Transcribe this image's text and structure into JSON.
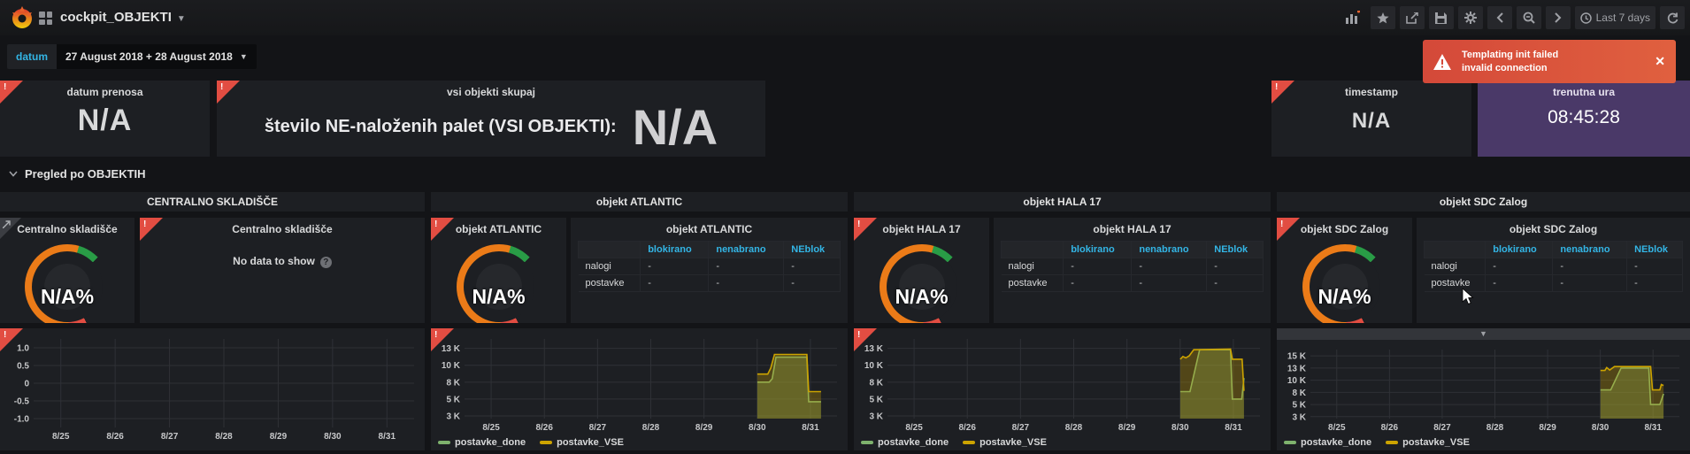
{
  "navbar": {
    "dashboard_title": "cockpit_OBJEKTI",
    "time_range_label": "Last 7 days"
  },
  "submenu": {
    "variable_label": "datum",
    "variable_value": "27 August 2018 + 28 August 2018"
  },
  "toast": {
    "title": "Templating init failed",
    "message": "invalid connection",
    "close_label": "✕"
  },
  "top_panels": {
    "datum_prenosa": {
      "title": "datum prenosa",
      "value": "N/A"
    },
    "vsi_objekti": {
      "title": "vsi objekti skupaj",
      "label": "število NE-naloženih palet (VSI OBJEKTI):",
      "value": "N/A"
    },
    "timestamp": {
      "title": "timestamp",
      "value": "N/A"
    },
    "trenutna_ura": {
      "title": "trenutna ura",
      "value": "08:45:28",
      "bg_color": "#4a3968"
    }
  },
  "row_header": {
    "title": "Pregled po OBJEKTIH"
  },
  "gauge_colors": {
    "start": "#e24d42",
    "main": "#eb7b18",
    "end": "#299c46"
  },
  "columns": [
    {
      "header": "CENTRALNO SKLADIŠČE",
      "gauge": {
        "title": "Centralno skladišče",
        "value": "N/A%"
      },
      "detail": {
        "type": "nodata",
        "title": "Centralno skladišče",
        "message": "No data to show",
        "help_icon": "?"
      }
    },
    {
      "header": "objekt ATLANTIC",
      "gauge": {
        "title": "objekt ATLANTIC",
        "value": "N/A%"
      },
      "detail": {
        "type": "table",
        "title": "objekt ATLANTIC",
        "col_headers": [
          "blokirano",
          "nenabrano",
          "NEblok"
        ],
        "rows": [
          {
            "label": "nalogi",
            "values": [
              "-",
              "-",
              "-"
            ]
          },
          {
            "label": "postavke",
            "values": [
              "-",
              "-",
              "-"
            ]
          }
        ]
      }
    },
    {
      "header": "objekt HALA 17",
      "gauge": {
        "title": "objekt HALA 17",
        "value": "N/A%"
      },
      "detail": {
        "type": "table",
        "title": "objekt HALA 17",
        "col_headers": [
          "blokirano",
          "nenabrano",
          "NEblok"
        ],
        "rows": [
          {
            "label": "nalogi",
            "values": [
              "-",
              "-",
              "-"
            ]
          },
          {
            "label": "postavke",
            "values": [
              "-",
              "-",
              "-"
            ]
          }
        ]
      }
    },
    {
      "header": "objekt SDC Zalog",
      "gauge": {
        "title": "objekt SDC Zalog",
        "value": "N/A%"
      },
      "detail": {
        "type": "table",
        "title": "objekt SDC Zalog",
        "col_headers": [
          "blokirano",
          "nenabrano",
          "NEblok"
        ],
        "rows": [
          {
            "label": "nalogi",
            "values": [
              "-",
              "-",
              "-"
            ]
          },
          {
            "label": "postavke",
            "values": [
              "-",
              "-",
              "-"
            ]
          }
        ]
      }
    }
  ],
  "chart_data": [
    {
      "panel": "Centralno skladišče graph",
      "type": "line",
      "x_ticks": [
        "8/25",
        "8/26",
        "8/27",
        "8/28",
        "8/29",
        "8/30",
        "8/31"
      ],
      "y_tick_labels": [
        "1.0",
        "0.5",
        "0",
        "-0.5",
        "-1.0"
      ],
      "y_tick_values": [
        1,
        0.5,
        0,
        -0.5,
        -1
      ],
      "ylim": [
        -1.25,
        1.25
      ],
      "series": [],
      "legend": [],
      "has_legend": false,
      "has_hover_bar": false
    },
    {
      "panel": "objekt ATLANTIC graph",
      "type": "line",
      "x_ticks": [
        "8/25",
        "8/26",
        "8/27",
        "8/28",
        "8/29",
        "8/30",
        "8/31"
      ],
      "y_tick_labels": [
        "13 K",
        "10 K",
        "8 K",
        "5 K",
        "3 K"
      ],
      "y_tick_values": [
        12.5,
        10,
        7.5,
        5,
        2.5
      ],
      "ylim": [
        2.1,
        13.9
      ],
      "y_unit": "thousands",
      "series": [
        {
          "name": "postavke_done",
          "color": "#7eb26d",
          "points": [
            [
              78.6,
              7.5
            ],
            [
              81.8,
              7.5
            ],
            [
              82.6,
              8.0
            ],
            [
              83.6,
              11.2
            ],
            [
              91.9,
              11.2
            ],
            [
              92.4,
              4.6
            ],
            [
              95.7,
              4.6
            ]
          ]
        },
        {
          "name": "postavke_VSE",
          "color": "#cca300",
          "points": [
            [
              78.6,
              8.7
            ],
            [
              81.4,
              8.7
            ],
            [
              82.2,
              9.6
            ],
            [
              83.2,
              11.6
            ],
            [
              91.9,
              11.6
            ],
            [
              92.4,
              6.1
            ],
            [
              95.7,
              6.1
            ]
          ]
        }
      ],
      "legend": [
        "postavke_done",
        "postavke_VSE"
      ],
      "has_legend": true,
      "has_hover_bar": false
    },
    {
      "panel": "objekt HALA 17 graph",
      "type": "line",
      "x_ticks": [
        "8/25",
        "8/26",
        "8/27",
        "8/28",
        "8/29",
        "8/30",
        "8/31"
      ],
      "y_tick_labels": [
        "13 K",
        "10 K",
        "8 K",
        "5 K",
        "3 K"
      ],
      "y_tick_values": [
        12.5,
        10,
        7.5,
        5,
        2.5
      ],
      "ylim": [
        2.1,
        13.9
      ],
      "y_unit": "thousands",
      "series": [
        {
          "name": "postavke_done",
          "color": "#7eb26d",
          "points": [
            [
              78.6,
              6.1
            ],
            [
              81.2,
              6.1
            ],
            [
              83.8,
              12.3
            ],
            [
              92.1,
              12.3
            ],
            [
              92.6,
              5.0
            ],
            [
              95.1,
              5.0
            ],
            [
              95.7,
              8.1
            ]
          ]
        },
        {
          "name": "postavke_VSE",
          "color": "#cca300",
          "points": [
            [
              78.6,
              10.9
            ],
            [
              79.3,
              11.3
            ],
            [
              80.1,
              11.1
            ],
            [
              81.0,
              11.4
            ],
            [
              82.2,
              12.3
            ],
            [
              92.1,
              12.4
            ],
            [
              92.6,
              10.9
            ],
            [
              95.2,
              10.9
            ],
            [
              95.7,
              6.2
            ]
          ]
        }
      ],
      "legend": [
        "postavke_done",
        "postavke_VSE"
      ],
      "has_legend": true,
      "has_hover_bar": false
    },
    {
      "panel": "objekt SDC Zalog graph",
      "type": "line",
      "x_ticks": [
        "8/25",
        "8/26",
        "8/27",
        "8/28",
        "8/29",
        "8/30",
        "8/31"
      ],
      "y_tick_labels": [
        "15 K",
        "13 K",
        "10 K",
        "8 K",
        "5 K",
        "3 K"
      ],
      "y_tick_values": [
        15,
        12.5,
        10,
        7.5,
        5,
        2.5
      ],
      "ylim": [
        2.1,
        16.3
      ],
      "y_unit": "thousands",
      "series": [
        {
          "name": "postavke_done",
          "color": "#7eb26d",
          "points": [
            [
              78.6,
              8.0
            ],
            [
              81.4,
              8.0
            ],
            [
              84.2,
              12.5
            ],
            [
              91.7,
              12.5
            ],
            [
              92.2,
              5.0
            ],
            [
              94.7,
              5.0
            ],
            [
              95.7,
              7.2
            ]
          ]
        },
        {
          "name": "postavke_VSE",
          "color": "#cca300",
          "points": [
            [
              78.6,
              12.0
            ],
            [
              79.8,
              12.0
            ],
            [
              80.3,
              12.6
            ],
            [
              81.1,
              12.1
            ],
            [
              82.4,
              12.8
            ],
            [
              92.2,
              12.8
            ],
            [
              92.7,
              8.0
            ],
            [
              94.7,
              8.0
            ],
            [
              95.1,
              9.1
            ],
            [
              95.7,
              8.9
            ]
          ]
        }
      ],
      "legend": [
        "postavke_done",
        "postavke_VSE"
      ],
      "has_legend": true,
      "has_hover_bar": true
    }
  ]
}
